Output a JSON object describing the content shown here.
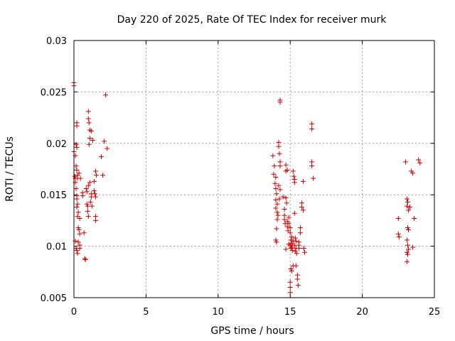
{
  "colors": {
    "series": "#cc0000"
  },
  "chart_data": {
    "type": "scatter",
    "title": "Day 220 of 2025, Rate Of TEC Index for receiver murk",
    "xlabel": "GPS time / hours",
    "ylabel": "ROTI / TECUs",
    "xlim": [
      0,
      25
    ],
    "ylim": [
      0.005,
      0.03
    ],
    "grid": true,
    "xticks": [
      0,
      5,
      10,
      15,
      20,
      25
    ],
    "xtick_labels": [
      "0",
      "5",
      "10",
      "15",
      "20",
      "25"
    ],
    "yticks": [
      0.005,
      0.01,
      0.015,
      0.02,
      0.025,
      0.03
    ],
    "ytick_labels": [
      "0.005",
      "0.01",
      "0.015",
      "0.02",
      "0.025",
      "0.03"
    ],
    "series": [
      {
        "name": "ROTI",
        "marker": "+",
        "points": [
          [
            0.0,
            0.0259
          ],
          [
            0.0,
            0.0256
          ],
          [
            0.0,
            0.0192
          ],
          [
            0.1,
            0.0188
          ],
          [
            0.05,
            0.0168
          ],
          [
            0.1,
            0.0166
          ],
          [
            0.15,
            0.0199
          ],
          [
            0.2,
            0.0196
          ],
          [
            0.2,
            0.022
          ],
          [
            0.2,
            0.0217
          ],
          [
            0.15,
            0.0178
          ],
          [
            0.2,
            0.0174
          ],
          [
            0.25,
            0.0169
          ],
          [
            0.25,
            0.0166
          ],
          [
            0.1,
            0.0162
          ],
          [
            0.15,
            0.0156
          ],
          [
            0.2,
            0.0149
          ],
          [
            0.2,
            0.0146
          ],
          [
            0.25,
            0.0141
          ],
          [
            0.2,
            0.0138
          ],
          [
            0.3,
            0.0133
          ],
          [
            0.25,
            0.0129
          ],
          [
            0.4,
            0.0127
          ],
          [
            0.3,
            0.0118
          ],
          [
            0.35,
            0.0116
          ],
          [
            0.4,
            0.0112
          ],
          [
            0.1,
            0.0105
          ],
          [
            0.3,
            0.0104
          ],
          [
            0.4,
            0.0101
          ],
          [
            0.15,
            0.0098
          ],
          [
            0.2,
            0.0096
          ],
          [
            0.25,
            0.0093
          ],
          [
            0.4,
            0.0098
          ],
          [
            0.35,
            0.0171
          ],
          [
            0.45,
            0.0166
          ],
          [
            0.6,
            0.0152
          ],
          [
            0.6,
            0.0149
          ],
          [
            0.7,
            0.0113
          ],
          [
            0.75,
            0.0088
          ],
          [
            0.8,
            0.0087
          ],
          [
            0.85,
            0.0156
          ],
          [
            0.9,
            0.0153
          ],
          [
            0.9,
            0.0141
          ],
          [
            0.95,
            0.0139
          ],
          [
            0.95,
            0.0134
          ],
          [
            1.0,
            0.0129
          ],
          [
            1.0,
            0.0231
          ],
          [
            1.0,
            0.0224
          ],
          [
            1.05,
            0.022
          ],
          [
            1.1,
            0.0213
          ],
          [
            1.1,
            0.0205
          ],
          [
            1.05,
            0.0199
          ],
          [
            1.1,
            0.0162
          ],
          [
            1.0,
            0.0159
          ],
          [
            1.2,
            0.0151
          ],
          [
            1.2,
            0.0148
          ],
          [
            1.15,
            0.0143
          ],
          [
            1.25,
            0.0139
          ],
          [
            1.2,
            0.0212
          ],
          [
            1.3,
            0.0203
          ],
          [
            1.4,
            0.0163
          ],
          [
            1.4,
            0.0154
          ],
          [
            1.45,
            0.0151
          ],
          [
            1.5,
            0.0148
          ],
          [
            1.5,
            0.0129
          ],
          [
            1.5,
            0.0125
          ],
          [
            1.5,
            0.0173
          ],
          [
            1.55,
            0.0169
          ],
          [
            1.9,
            0.0187
          ],
          [
            2.0,
            0.0169
          ],
          [
            2.1,
            0.0202
          ],
          [
            2.2,
            0.0247
          ],
          [
            2.3,
            0.0195
          ],
          [
            13.8,
            0.0188
          ],
          [
            13.9,
            0.0178
          ],
          [
            13.85,
            0.017
          ],
          [
            14.0,
            0.0167
          ],
          [
            13.95,
            0.0161
          ],
          [
            14.0,
            0.0156
          ],
          [
            14.05,
            0.0151
          ],
          [
            14.0,
            0.0145
          ],
          [
            14.1,
            0.0141
          ],
          [
            14.0,
            0.0137
          ],
          [
            14.1,
            0.0133
          ],
          [
            14.15,
            0.013
          ],
          [
            14.1,
            0.0126
          ],
          [
            14.05,
            0.0117
          ],
          [
            14.0,
            0.0106
          ],
          [
            14.05,
            0.0104
          ],
          [
            14.2,
            0.0201
          ],
          [
            14.2,
            0.0197
          ],
          [
            14.25,
            0.019
          ],
          [
            14.3,
            0.0182
          ],
          [
            14.3,
            0.0178
          ],
          [
            14.2,
            0.0159
          ],
          [
            14.3,
            0.0155
          ],
          [
            14.25,
            0.0146
          ],
          [
            14.3,
            0.0242
          ],
          [
            14.3,
            0.024
          ],
          [
            14.5,
            0.0148
          ],
          [
            14.6,
            0.0136
          ],
          [
            14.6,
            0.013
          ],
          [
            14.6,
            0.0126
          ],
          [
            14.65,
            0.0122
          ],
          [
            14.7,
            0.0179
          ],
          [
            14.7,
            0.0173
          ],
          [
            14.7,
            0.0147
          ],
          [
            14.75,
            0.0142
          ],
          [
            14.7,
            0.0097
          ],
          [
            14.8,
            0.0174
          ],
          [
            14.8,
            0.0124
          ],
          [
            14.8,
            0.0119
          ],
          [
            14.85,
            0.0115
          ],
          [
            14.9,
            0.0128
          ],
          [
            14.9,
            0.0122
          ],
          [
            15.0,
            0.0118
          ],
          [
            15.0,
            0.0113
          ],
          [
            14.9,
            0.0102
          ],
          [
            15.0,
            0.0101
          ],
          [
            15.05,
            0.0098
          ],
          [
            15.1,
            0.0109
          ],
          [
            15.05,
            0.0106
          ],
          [
            15.1,
            0.0103
          ],
          [
            15.1,
            0.0099
          ],
          [
            15.15,
            0.0096
          ],
          [
            15.2,
            0.0105
          ],
          [
            15.15,
            0.0101
          ],
          [
            15.05,
            0.0078
          ],
          [
            15.1,
            0.0076
          ],
          [
            15.2,
            0.0081
          ],
          [
            15.0,
            0.0065
          ],
          [
            15.0,
            0.006
          ],
          [
            15.0,
            0.0055
          ],
          [
            15.2,
            0.0173
          ],
          [
            15.25,
            0.0168
          ],
          [
            15.3,
            0.0165
          ],
          [
            15.3,
            0.0162
          ],
          [
            15.3,
            0.0132
          ],
          [
            15.35,
            0.0108
          ],
          [
            15.4,
            0.0105
          ],
          [
            15.3,
            0.0101
          ],
          [
            15.4,
            0.0098
          ],
          [
            15.35,
            0.0095
          ],
          [
            15.45,
            0.0093
          ],
          [
            15.4,
            0.0081
          ],
          [
            15.5,
            0.0072
          ],
          [
            15.5,
            0.0068
          ],
          [
            15.55,
            0.0062
          ],
          [
            15.6,
            0.0104
          ],
          [
            15.6,
            0.0101
          ],
          [
            15.6,
            0.0098
          ],
          [
            15.7,
            0.0118
          ],
          [
            15.7,
            0.0113
          ],
          [
            15.8,
            0.0142
          ],
          [
            15.8,
            0.0138
          ],
          [
            15.9,
            0.0163
          ],
          [
            15.9,
            0.0135
          ],
          [
            15.95,
            0.0098
          ],
          [
            16.0,
            0.0094
          ],
          [
            16.5,
            0.0219
          ],
          [
            16.5,
            0.0214
          ],
          [
            16.5,
            0.0182
          ],
          [
            16.5,
            0.0178
          ],
          [
            16.6,
            0.0166
          ],
          [
            22.5,
            0.0127
          ],
          [
            22.5,
            0.0112
          ],
          [
            22.55,
            0.0109
          ],
          [
            23.0,
            0.0182
          ],
          [
            23.1,
            0.0146
          ],
          [
            23.15,
            0.0143
          ],
          [
            23.1,
            0.0139
          ],
          [
            23.2,
            0.0135
          ],
          [
            23.15,
            0.0118
          ],
          [
            23.2,
            0.0116
          ],
          [
            23.1,
            0.0106
          ],
          [
            23.15,
            0.0101
          ],
          [
            23.2,
            0.0097
          ],
          [
            23.1,
            0.0094
          ],
          [
            23.15,
            0.0092
          ],
          [
            23.1,
            0.0085
          ],
          [
            23.3,
            0.0138
          ],
          [
            23.4,
            0.0173
          ],
          [
            23.5,
            0.0171
          ],
          [
            23.6,
            0.0127
          ],
          [
            23.5,
            0.0099
          ],
          [
            23.9,
            0.0184
          ],
          [
            24.0,
            0.0181
          ]
        ]
      }
    ]
  }
}
